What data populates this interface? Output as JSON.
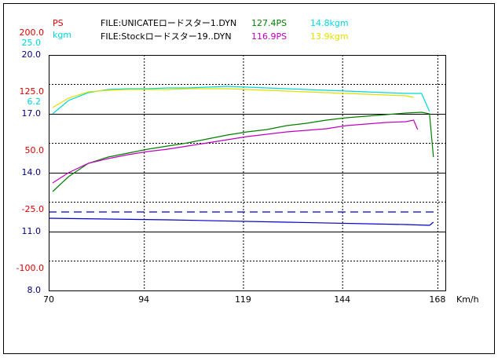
{
  "chart_data": {
    "type": "line",
    "ps_label": "PS",
    "kgm_label": "kgm",
    "x_label": "Km/h",
    "files": [
      {
        "file": "FILE:UNICATEロードスター1.DYN",
        "ps": "127.4PS",
        "kgm": "14.8kgm",
        "ps_color": "#008000",
        "kgm_color": "#00d8d8"
      },
      {
        "file": "FILE:Stockロードスター19..DYN",
        "ps": "116.9PS",
        "kgm": "13.9kgm",
        "ps_color": "#c000c0",
        "kgm_color": "#e0e000"
      }
    ],
    "xlim": [
      70,
      170
    ],
    "xticks": [
      70,
      94,
      119,
      144,
      168
    ],
    "ylim": [
      8,
      20
    ],
    "yticks": [
      {
        "value": 8,
        "label": "8.0"
      },
      {
        "value": 11,
        "label": "11.0"
      },
      {
        "value": 14,
        "label": "14.0"
      },
      {
        "value": 17,
        "label": "17.0"
      },
      {
        "value": 20,
        "label": "20.0"
      }
    ],
    "y_color": "#000080",
    "y2lim": [
      -138,
      162
    ],
    "y2ticks": [
      {
        "value": -100,
        "label": "-100.0"
      },
      {
        "value": -25,
        "label": "-25.0"
      },
      {
        "value": 50,
        "label": "50.0"
      },
      {
        "value": 125,
        "label": "125.0"
      },
      {
        "value": 200,
        "label": "200.0"
      }
    ],
    "y2_color": "#e00000",
    "y3lim": [
      -54,
      21.2
    ],
    "y3ticks": [
      6.2,
      {
        "value": 25,
        "label": "25.0"
      }
    ],
    "y3_color": "#00d8d8",
    "grid": true,
    "series": [
      {
        "color": "#008000",
        "x": [
          71,
          75,
          80,
          85,
          90,
          95,
          100,
          105,
          110,
          115,
          120,
          125,
          130,
          135,
          140,
          145,
          150,
          155,
          160,
          164,
          166,
          167
        ],
        "values": [
          13.04,
          13.8,
          14.48,
          14.8,
          15.0,
          15.2,
          15.36,
          15.52,
          15.72,
          15.92,
          16.08,
          16.2,
          16.4,
          16.52,
          16.68,
          16.8,
          16.88,
          16.96,
          17.04,
          17.08,
          17.0,
          14.8
        ]
      },
      {
        "color": "#c000c0",
        "x": [
          71,
          75,
          80,
          85,
          90,
          95,
          100,
          105,
          110,
          115,
          120,
          125,
          130,
          135,
          140,
          145,
          150,
          155,
          160,
          162,
          163
        ],
        "values": [
          13.48,
          14.0,
          14.48,
          14.72,
          14.92,
          15.08,
          15.2,
          15.36,
          15.52,
          15.68,
          15.84,
          15.96,
          16.08,
          16.16,
          16.24,
          16.4,
          16.48,
          16.56,
          16.6,
          16.68,
          16.2
        ]
      },
      {
        "color": "#00d8d8",
        "x": [
          71,
          75,
          80,
          85,
          90,
          95,
          100,
          105,
          110,
          115,
          120,
          125,
          130,
          135,
          140,
          145,
          150,
          155,
          160,
          164,
          166
        ],
        "values": [
          17.0,
          17.68,
          18.08,
          18.24,
          18.28,
          18.28,
          18.32,
          18.32,
          18.36,
          18.4,
          18.36,
          18.32,
          18.28,
          18.24,
          18.2,
          18.16,
          18.12,
          18.08,
          18.04,
          18.04,
          17.12
        ]
      },
      {
        "color": "#e0e000",
        "x": [
          71,
          75,
          80,
          85,
          90,
          95,
          100,
          105,
          110,
          115,
          120,
          125,
          130,
          135,
          140,
          145,
          150,
          155,
          160,
          162
        ],
        "values": [
          17.32,
          17.8,
          18.12,
          18.2,
          18.24,
          18.24,
          18.24,
          18.28,
          18.28,
          18.28,
          18.24,
          18.2,
          18.16,
          18.12,
          18.08,
          18.04,
          18.0,
          17.96,
          17.92,
          17.84
        ]
      },
      {
        "color": "#0000cc",
        "dash": true,
        "x": [
          70,
          168
        ],
        "values": [
          12.0,
          12.0
        ]
      },
      {
        "color": "#0000cc",
        "x": [
          70,
          100,
          130,
          160,
          166,
          167
        ],
        "values": [
          11.68,
          11.6,
          11.48,
          11.36,
          11.32,
          11.48
        ]
      }
    ]
  }
}
